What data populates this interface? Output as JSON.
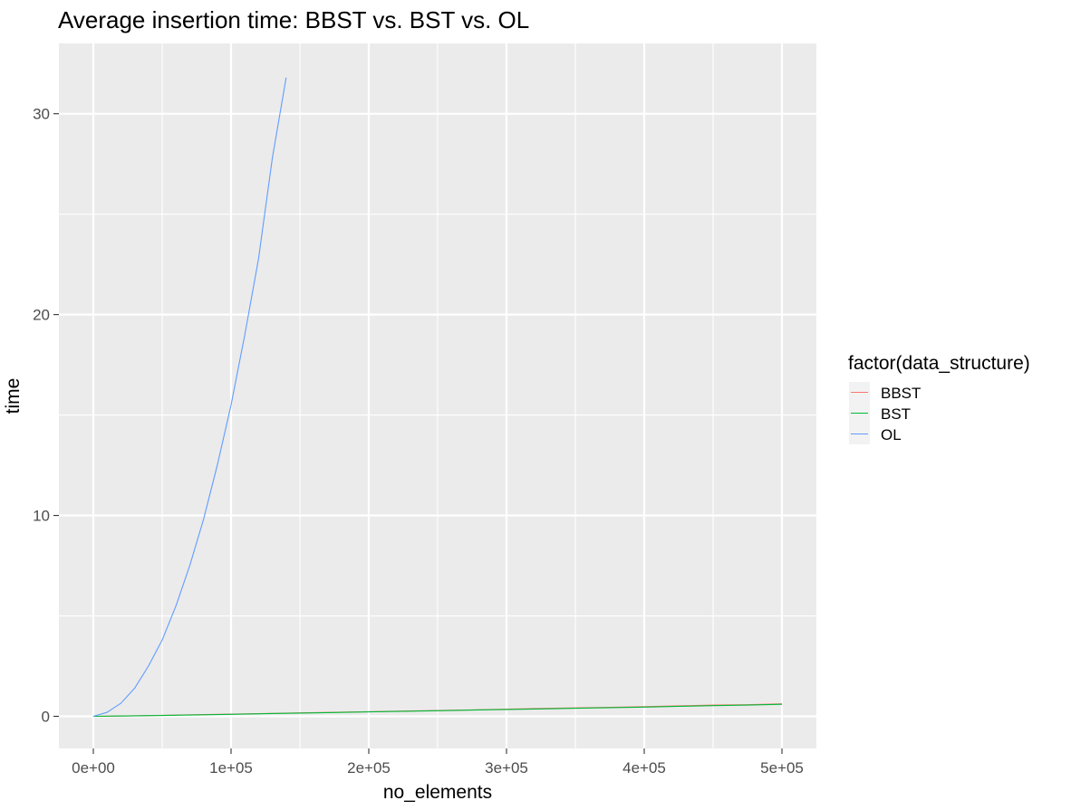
{
  "chart_data": {
    "type": "line",
    "title": "Average insertion time: BBST vs. BST vs. OL",
    "xlabel": "no_elements",
    "ylabel": "time",
    "xlim": [
      -25000,
      525000
    ],
    "ylim": [
      -1.6,
      33.5
    ],
    "x_ticks": [
      0,
      100000,
      200000,
      300000,
      400000,
      500000
    ],
    "x_tick_labels": [
      "0e+00",
      "1e+05",
      "2e+05",
      "3e+05",
      "4e+05",
      "5e+05"
    ],
    "y_ticks": [
      0,
      10,
      20,
      30
    ],
    "y_tick_labels": [
      "0",
      "10",
      "20",
      "30"
    ],
    "grid": true,
    "background": "#ebebeb",
    "legend": {
      "title": "factor(data_structure)",
      "position": "right"
    },
    "series": [
      {
        "name": "BBST",
        "color": "#f8766d",
        "x": [
          0,
          25000,
          50000,
          75000,
          100000,
          125000,
          150000,
          175000,
          200000,
          225000,
          250000,
          275000,
          300000,
          325000,
          350000,
          375000,
          400000,
          425000,
          450000,
          475000,
          500000
        ],
        "y": [
          0,
          0.02,
          0.05,
          0.08,
          0.11,
          0.14,
          0.17,
          0.2,
          0.23,
          0.26,
          0.29,
          0.32,
          0.36,
          0.39,
          0.42,
          0.45,
          0.48,
          0.52,
          0.56,
          0.58,
          0.62
        ]
      },
      {
        "name": "BST",
        "color": "#00ba38",
        "x": [
          0,
          25000,
          50000,
          75000,
          100000,
          125000,
          150000,
          175000,
          200000,
          225000,
          250000,
          275000,
          300000,
          325000,
          350000,
          375000,
          400000,
          425000,
          450000,
          475000,
          500000
        ],
        "y": [
          0,
          0.02,
          0.04,
          0.07,
          0.1,
          0.13,
          0.16,
          0.19,
          0.22,
          0.25,
          0.28,
          0.31,
          0.34,
          0.37,
          0.4,
          0.43,
          0.46,
          0.5,
          0.53,
          0.56,
          0.6
        ]
      },
      {
        "name": "OL",
        "color": "#619cff",
        "x": [
          0,
          10000,
          20000,
          30000,
          40000,
          50000,
          60000,
          70000,
          80000,
          90000,
          100000,
          110000,
          120000,
          130000,
          140000
        ],
        "y": [
          0,
          0.2,
          0.65,
          1.4,
          2.5,
          3.8,
          5.5,
          7.5,
          9.8,
          12.5,
          15.5,
          19.0,
          22.8,
          27.8,
          31.8
        ]
      }
    ]
  }
}
